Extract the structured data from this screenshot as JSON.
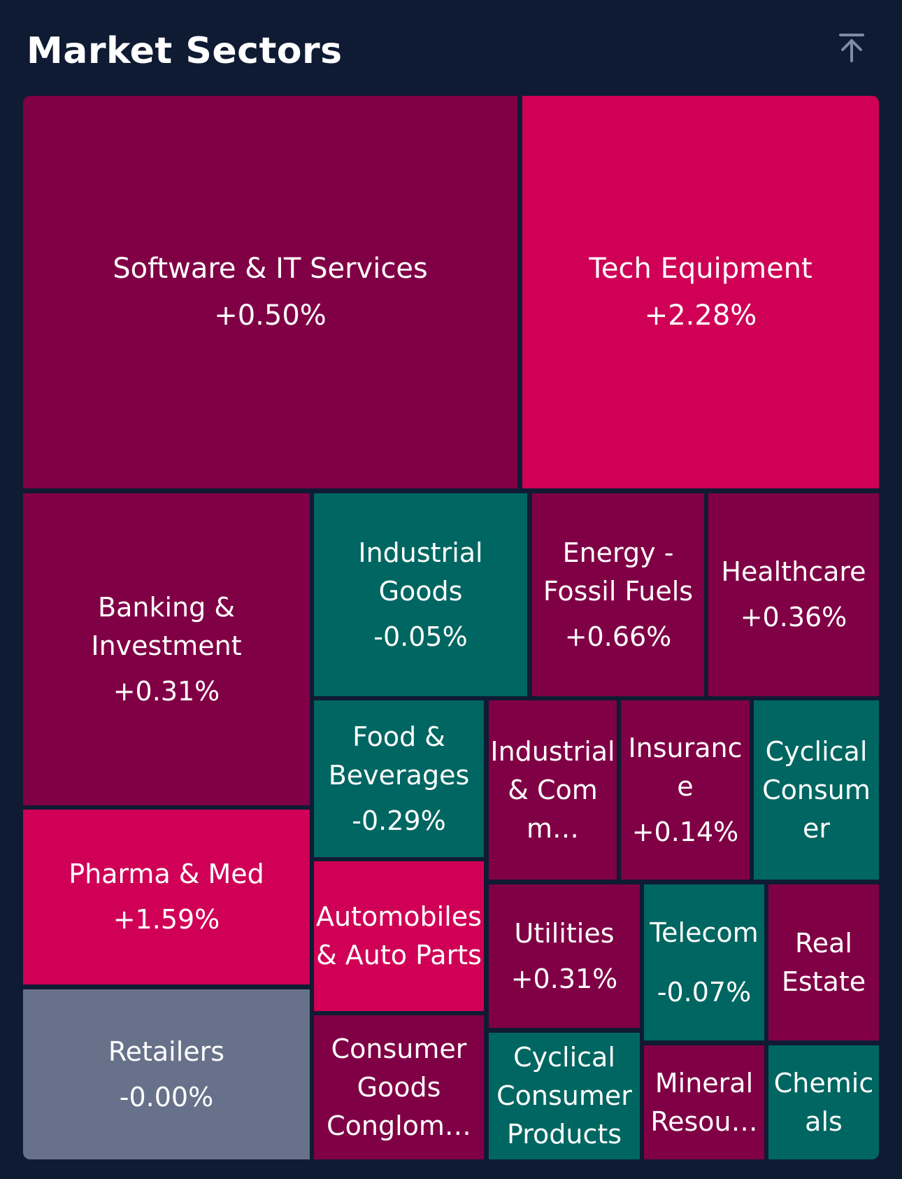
{
  "header": {
    "title": "Market Sectors",
    "collapse_icon": "collapse-to-top-icon"
  },
  "colors": {
    "background": "#0f1b33",
    "strong_gain": "#cf0056",
    "gain": "#800045",
    "loss": "#006661",
    "flat": "#67718a"
  },
  "sectors": [
    {
      "name": "Software & IT Services",
      "change": "+0.50%"
    },
    {
      "name": "Tech Equipment",
      "change": "+2.28%"
    },
    {
      "name": "Banking & Investment",
      "change": "+0.31%"
    },
    {
      "name": "Industrial Goods",
      "change": "-0.05%"
    },
    {
      "name": "Energy - Fossil Fuels",
      "change": "+0.66%"
    },
    {
      "name": "Healthcare",
      "change": "+0.36%"
    },
    {
      "name": "Pharma & Med",
      "change": "+1.59%"
    },
    {
      "name": "Food & Beverages",
      "change": "-0.29%"
    },
    {
      "name": "Industrial & Comm…",
      "change": ""
    },
    {
      "name": "Insurance",
      "change": "+0.14%"
    },
    {
      "name": "Cyclical Consumer",
      "change": ""
    },
    {
      "name": "Retailers",
      "change": "-0.00%"
    },
    {
      "name": "Automobiles & Auto Parts",
      "change": ""
    },
    {
      "name": "Utilities",
      "change": "+0.31%"
    },
    {
      "name": "Telecom",
      "change": "-0.07%"
    },
    {
      "name": "Real Estate",
      "change": ""
    },
    {
      "name": "Consumer Goods Conglom…",
      "change": ""
    },
    {
      "name": "Cyclical Consumer Products",
      "change": ""
    },
    {
      "name": "Mineral Resou…",
      "change": ""
    },
    {
      "name": "Chemicals",
      "change": ""
    }
  ]
}
